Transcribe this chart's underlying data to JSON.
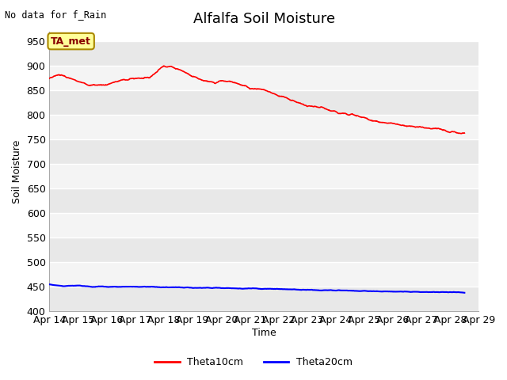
{
  "title": "Alfalfa Soil Moisture",
  "no_data_text": "No data for f_Rain",
  "ylabel": "Soil Moisture",
  "xlabel": "Time",
  "ylim": [
    400,
    970
  ],
  "yticks": [
    400,
    450,
    500,
    550,
    600,
    650,
    700,
    750,
    800,
    850,
    900,
    950
  ],
  "x_labels": [
    "Apr 14",
    "Apr 15",
    "Apr 16",
    "Apr 17",
    "Apr 18",
    "Apr 19",
    "Apr 20",
    "Apr 21",
    "Apr 22",
    "Apr 23",
    "Apr 24",
    "Apr 25",
    "Apr 26",
    "Apr 27",
    "Apr 28",
    "Apr 29"
  ],
  "annotation_text": "TA_met",
  "annotation_box_facecolor": "#FFFF99",
  "annotation_box_edgecolor": "#AA8800",
  "annotation_text_color": "#880000",
  "legend_entries": [
    "Theta10cm",
    "Theta20cm"
  ],
  "legend_colors": [
    "red",
    "blue"
  ],
  "fig_bg_color": "#ffffff",
  "plot_bg_color": "#ffffff",
  "band_color_dark": "#E8E8E8",
  "band_color_light": "#F4F4F4",
  "grid_color": "#ffffff",
  "title_fontsize": 13,
  "axis_label_fontsize": 9,
  "tick_fontsize": 9,
  "theta10_keypoints_x": [
    0,
    0.3,
    0.5,
    1.0,
    1.5,
    2.0,
    2.5,
    3.0,
    3.5,
    4.0,
    4.3,
    4.5,
    5.0,
    5.5,
    5.8,
    6.0,
    6.5,
    7.0,
    7.5,
    8.0,
    8.5,
    9.0,
    9.5,
    10.0,
    10.5,
    11.0,
    11.5,
    12.0,
    12.5,
    13.0,
    13.5,
    14.0,
    14.5
  ],
  "theta10_keypoints_y": [
    875,
    883,
    880,
    868,
    861,
    862,
    871,
    875,
    877,
    901,
    898,
    894,
    880,
    868,
    865,
    870,
    867,
    855,
    852,
    840,
    830,
    818,
    815,
    806,
    802,
    794,
    786,
    782,
    778,
    775,
    773,
    765,
    762
  ],
  "theta20_keypoints_x": [
    0,
    0.5,
    1.0,
    1.5,
    2.0,
    2.5,
    3.0,
    4.0,
    5.0,
    6.0,
    7.0,
    8.0,
    9.0,
    10.0,
    11.0,
    12.0,
    13.0,
    14.0,
    14.5
  ],
  "theta20_keypoints_y": [
    455,
    451,
    452,
    450,
    450,
    450,
    450,
    449,
    448,
    447,
    446,
    445,
    443,
    442,
    441,
    440,
    439,
    439,
    438
  ]
}
